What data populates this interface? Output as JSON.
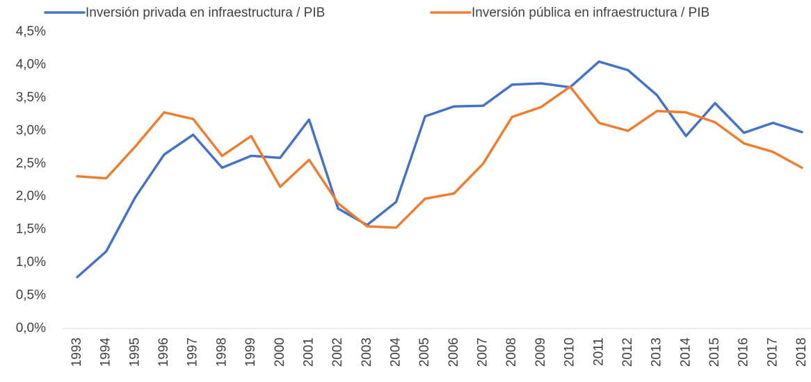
{
  "chart_data": {
    "type": "line",
    "categories": [
      "1993",
      "1994",
      "1995",
      "1996",
      "1997",
      "1998",
      "1999",
      "2000",
      "2001",
      "2002",
      "2003",
      "2004",
      "2005",
      "2006",
      "2007",
      "2008",
      "2009",
      "2010",
      "2011",
      "2012",
      "2013",
      "2014",
      "2015",
      "2016",
      "2017",
      "2018"
    ],
    "series": [
      {
        "name": "Inversión privada en infraestructura / PIB",
        "color": "#4472c4",
        "values": [
          0.78,
          1.17,
          1.99,
          2.64,
          2.94,
          2.44,
          2.62,
          2.59,
          3.17,
          1.82,
          1.57,
          1.92,
          3.22,
          3.37,
          3.38,
          3.7,
          3.72,
          3.66,
          4.05,
          3.92,
          3.54,
          2.92,
          3.42,
          2.97,
          3.12,
          2.98
        ]
      },
      {
        "name": "Inversión pública en infraestructura / PIB",
        "color": "#ed7d31",
        "values": [
          2.31,
          2.28,
          2.76,
          3.28,
          3.18,
          2.62,
          2.92,
          2.15,
          2.56,
          1.9,
          1.55,
          1.53,
          1.97,
          2.05,
          2.5,
          3.21,
          3.36,
          3.67,
          3.12,
          3.0,
          3.3,
          3.28,
          3.13,
          2.81,
          2.68,
          2.44
        ]
      }
    ],
    "ylim": [
      0,
      4.5
    ],
    "yticks": [
      {
        "value": 0,
        "label": "0,0%"
      },
      {
        "value": 0.5,
        "label": "0,5%"
      },
      {
        "value": 1,
        "label": "1,0%"
      },
      {
        "value": 1.5,
        "label": "1,5%"
      },
      {
        "value": 2,
        "label": "2,0%"
      },
      {
        "value": 2.5,
        "label": "2,5%"
      },
      {
        "value": 3,
        "label": "3,0%"
      },
      {
        "value": 3.5,
        "label": "3,5%"
      },
      {
        "value": 4,
        "label": "4,0%"
      },
      {
        "value": 4.5,
        "label": "4,5%"
      }
    ],
    "grid": false,
    "legend": "top"
  }
}
